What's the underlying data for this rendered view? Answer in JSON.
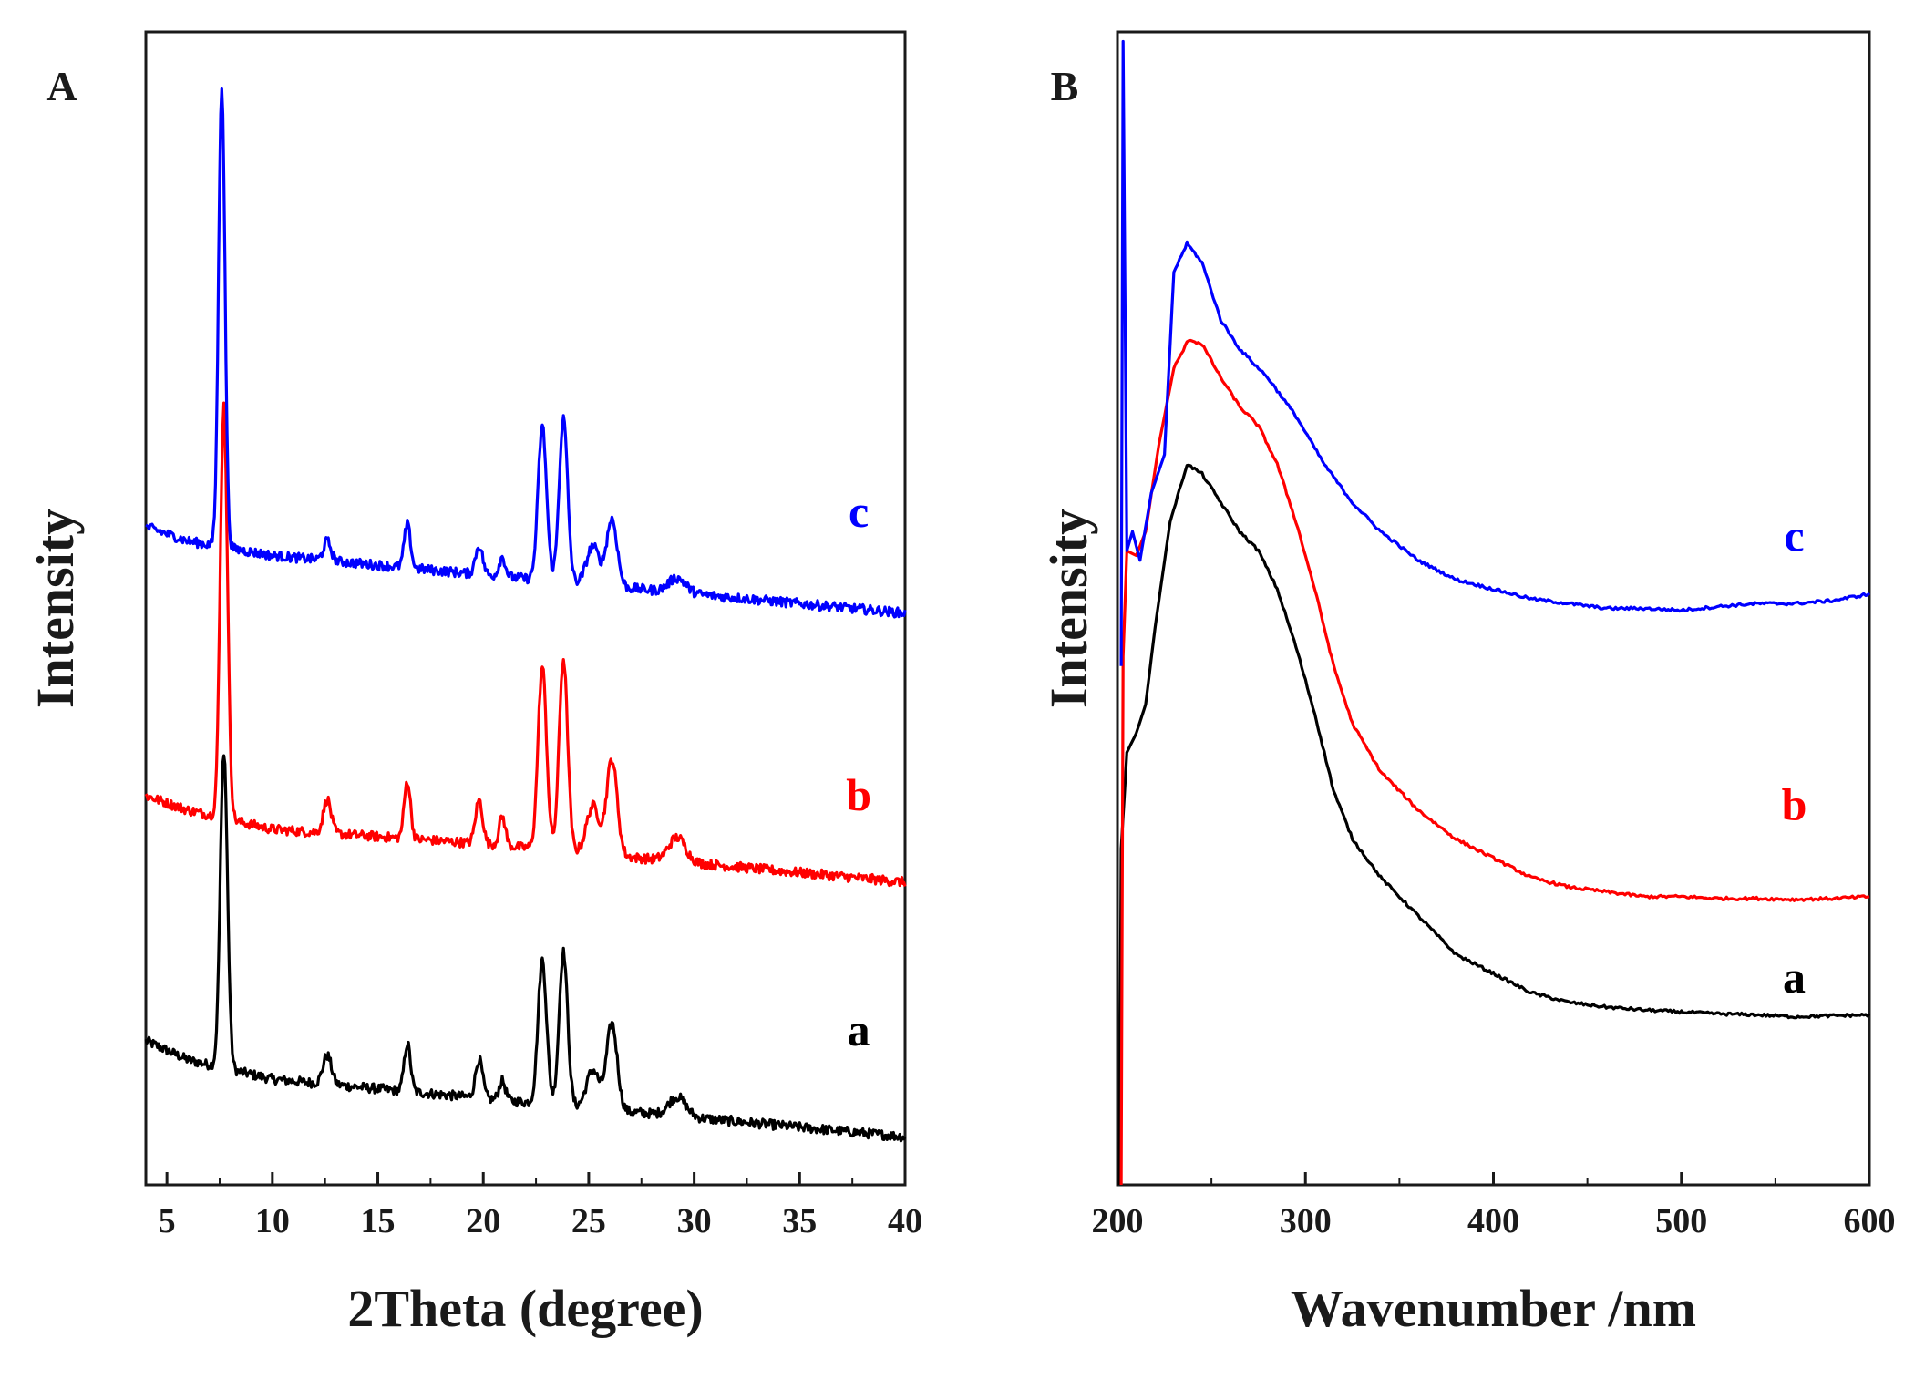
{
  "chart_data": [
    {
      "type": "line",
      "panel_label": "A",
      "xlabel": "2Theta (degree)",
      "ylabel": "Intensity",
      "xlim": [
        4,
        40
      ],
      "ylim": [
        0,
        12
      ],
      "xticks": [
        5,
        10,
        15,
        20,
        25,
        30,
        35,
        40
      ],
      "grid": false,
      "series": [
        {
          "name": "a",
          "color": "#000000",
          "label_x": 37.8,
          "label_y": 1.45,
          "baseline": [
            [
              4,
              1.5
            ],
            [
              6,
              1.3
            ],
            [
              10,
              1.1
            ],
            [
              20,
              0.9
            ],
            [
              30,
              0.7
            ],
            [
              40,
              0.5
            ]
          ],
          "peaks": [
            [
              7.7,
              3.3,
              0.17
            ],
            [
              12.6,
              0.3,
              0.2
            ],
            [
              16.4,
              0.5,
              0.15
            ],
            [
              19.8,
              0.4,
              0.17
            ],
            [
              20.9,
              0.2,
              0.15
            ],
            [
              22.8,
              1.5,
              0.2
            ],
            [
              23.8,
              1.6,
              0.2
            ],
            [
              25.2,
              0.4,
              0.3
            ],
            [
              26.1,
              0.9,
              0.25
            ],
            [
              29.2,
              0.2,
              0.4
            ]
          ]
        },
        {
          "name": "b",
          "color": "#ff0000",
          "label_x": 37.8,
          "label_y": 3.9,
          "baseline": [
            [
              4,
              4.05
            ],
            [
              6,
              3.9
            ],
            [
              10,
              3.7
            ],
            [
              20,
              3.55
            ],
            [
              30,
              3.35
            ],
            [
              40,
              3.15
            ]
          ],
          "peaks": [
            [
              7.7,
              4.3,
              0.17
            ],
            [
              12.6,
              0.35,
              0.18
            ],
            [
              16.4,
              0.6,
              0.15
            ],
            [
              19.8,
              0.45,
              0.17
            ],
            [
              20.9,
              0.3,
              0.15
            ],
            [
              22.8,
              1.9,
              0.2
            ],
            [
              23.8,
              2.0,
              0.2
            ],
            [
              25.2,
              0.5,
              0.3
            ],
            [
              26.1,
              1.0,
              0.25
            ],
            [
              29.2,
              0.25,
              0.4
            ]
          ]
        },
        {
          "name": "c",
          "color": "#0000ff",
          "label_x": 37.8,
          "label_y": 6.85,
          "baseline": [
            [
              4,
              6.85
            ],
            [
              6,
              6.7
            ],
            [
              10,
              6.55
            ],
            [
              20,
              6.35
            ],
            [
              30,
              6.15
            ],
            [
              40,
              5.95
            ]
          ],
          "peaks": [
            [
              7.6,
              4.8,
              0.15
            ],
            [
              12.6,
              0.2,
              0.18
            ],
            [
              16.4,
              0.45,
              0.15
            ],
            [
              19.8,
              0.3,
              0.17
            ],
            [
              20.9,
              0.2,
              0.15
            ],
            [
              22.8,
              1.6,
              0.2
            ],
            [
              23.8,
              1.7,
              0.2
            ],
            [
              25.2,
              0.4,
              0.3
            ],
            [
              26.1,
              0.7,
              0.25
            ],
            [
              29.2,
              0.15,
              0.4
            ]
          ]
        }
      ]
    },
    {
      "type": "line",
      "panel_label": "B",
      "xlabel": "Wavenumber /nm",
      "ylabel": "Intensity",
      "xlim": [
        200,
        600
      ],
      "ylim": [
        0,
        12
      ],
      "xticks": [
        200,
        300,
        400,
        500,
        600
      ],
      "grid": false,
      "series": [
        {
          "name": "a",
          "color": "#000000",
          "label_x": 560,
          "label_y": 2.0,
          "points": [
            [
              201,
              0
            ],
            [
              202,
              3.5
            ],
            [
              205,
              4.5
            ],
            [
              210,
              4.7
            ],
            [
              215,
              5.0
            ],
            [
              220,
              5.8
            ],
            [
              228,
              6.9
            ],
            [
              237,
              7.5
            ],
            [
              245,
              7.4
            ],
            [
              255,
              7.1
            ],
            [
              265,
              6.8
            ],
            [
              275,
              6.6
            ],
            [
              285,
              6.2
            ],
            [
              295,
              5.6
            ],
            [
              305,
              4.9
            ],
            [
              315,
              4.1
            ],
            [
              325,
              3.6
            ],
            [
              340,
              3.2
            ],
            [
              360,
              2.8
            ],
            [
              380,
              2.4
            ],
            [
              400,
              2.2
            ],
            [
              420,
              2.0
            ],
            [
              440,
              1.9
            ],
            [
              460,
              1.85
            ],
            [
              480,
              1.82
            ],
            [
              500,
              1.8
            ],
            [
              520,
              1.78
            ],
            [
              540,
              1.77
            ],
            [
              560,
              1.75
            ],
            [
              580,
              1.76
            ],
            [
              600,
              1.77
            ]
          ]
        },
        {
          "name": "b",
          "color": "#ff0000",
          "label_x": 560,
          "label_y": 3.8,
          "points": [
            [
              202,
              0
            ],
            [
              203,
              5.5
            ],
            [
              205,
              6.6
            ],
            [
              210,
              6.55
            ],
            [
              215,
              6.8
            ],
            [
              222,
              7.7
            ],
            [
              230,
              8.5
            ],
            [
              238,
              8.8
            ],
            [
              245,
              8.75
            ],
            [
              255,
              8.4
            ],
            [
              265,
              8.1
            ],
            [
              275,
              7.9
            ],
            [
              285,
              7.5
            ],
            [
              295,
              6.9
            ],
            [
              305,
              6.2
            ],
            [
              315,
              5.4
            ],
            [
              325,
              4.8
            ],
            [
              340,
              4.3
            ],
            [
              360,
              3.9
            ],
            [
              380,
              3.6
            ],
            [
              400,
              3.4
            ],
            [
              420,
              3.2
            ],
            [
              440,
              3.1
            ],
            [
              460,
              3.05
            ],
            [
              480,
              3.0
            ],
            [
              500,
              3.0
            ],
            [
              520,
              2.98
            ],
            [
              540,
              2.98
            ],
            [
              560,
              2.97
            ],
            [
              580,
              2.98
            ],
            [
              600,
              3.0
            ]
          ]
        },
        {
          "name": "c",
          "color": "#0000ff",
          "label_x": 560,
          "label_y": 6.6,
          "points": [
            [
              202,
              5.4
            ],
            [
              203,
              11.9
            ],
            [
              205,
              6.6
            ],
            [
              208,
              6.8
            ],
            [
              212,
              6.5
            ],
            [
              218,
              7.2
            ],
            [
              225,
              7.6
            ],
            [
              230,
              9.5
            ],
            [
              237,
              9.8
            ],
            [
              245,
              9.6
            ],
            [
              255,
              9.0
            ],
            [
              265,
              8.7
            ],
            [
              280,
              8.4
            ],
            [
              295,
              8.0
            ],
            [
              310,
              7.5
            ],
            [
              325,
              7.1
            ],
            [
              340,
              6.8
            ],
            [
              360,
              6.5
            ],
            [
              380,
              6.3
            ],
            [
              400,
              6.2
            ],
            [
              420,
              6.1
            ],
            [
              440,
              6.05
            ],
            [
              460,
              6.0
            ],
            [
              480,
              6.0
            ],
            [
              500,
              5.98
            ],
            [
              520,
              6.02
            ],
            [
              540,
              6.05
            ],
            [
              560,
              6.05
            ],
            [
              580,
              6.08
            ],
            [
              600,
              6.15
            ]
          ]
        }
      ]
    }
  ]
}
